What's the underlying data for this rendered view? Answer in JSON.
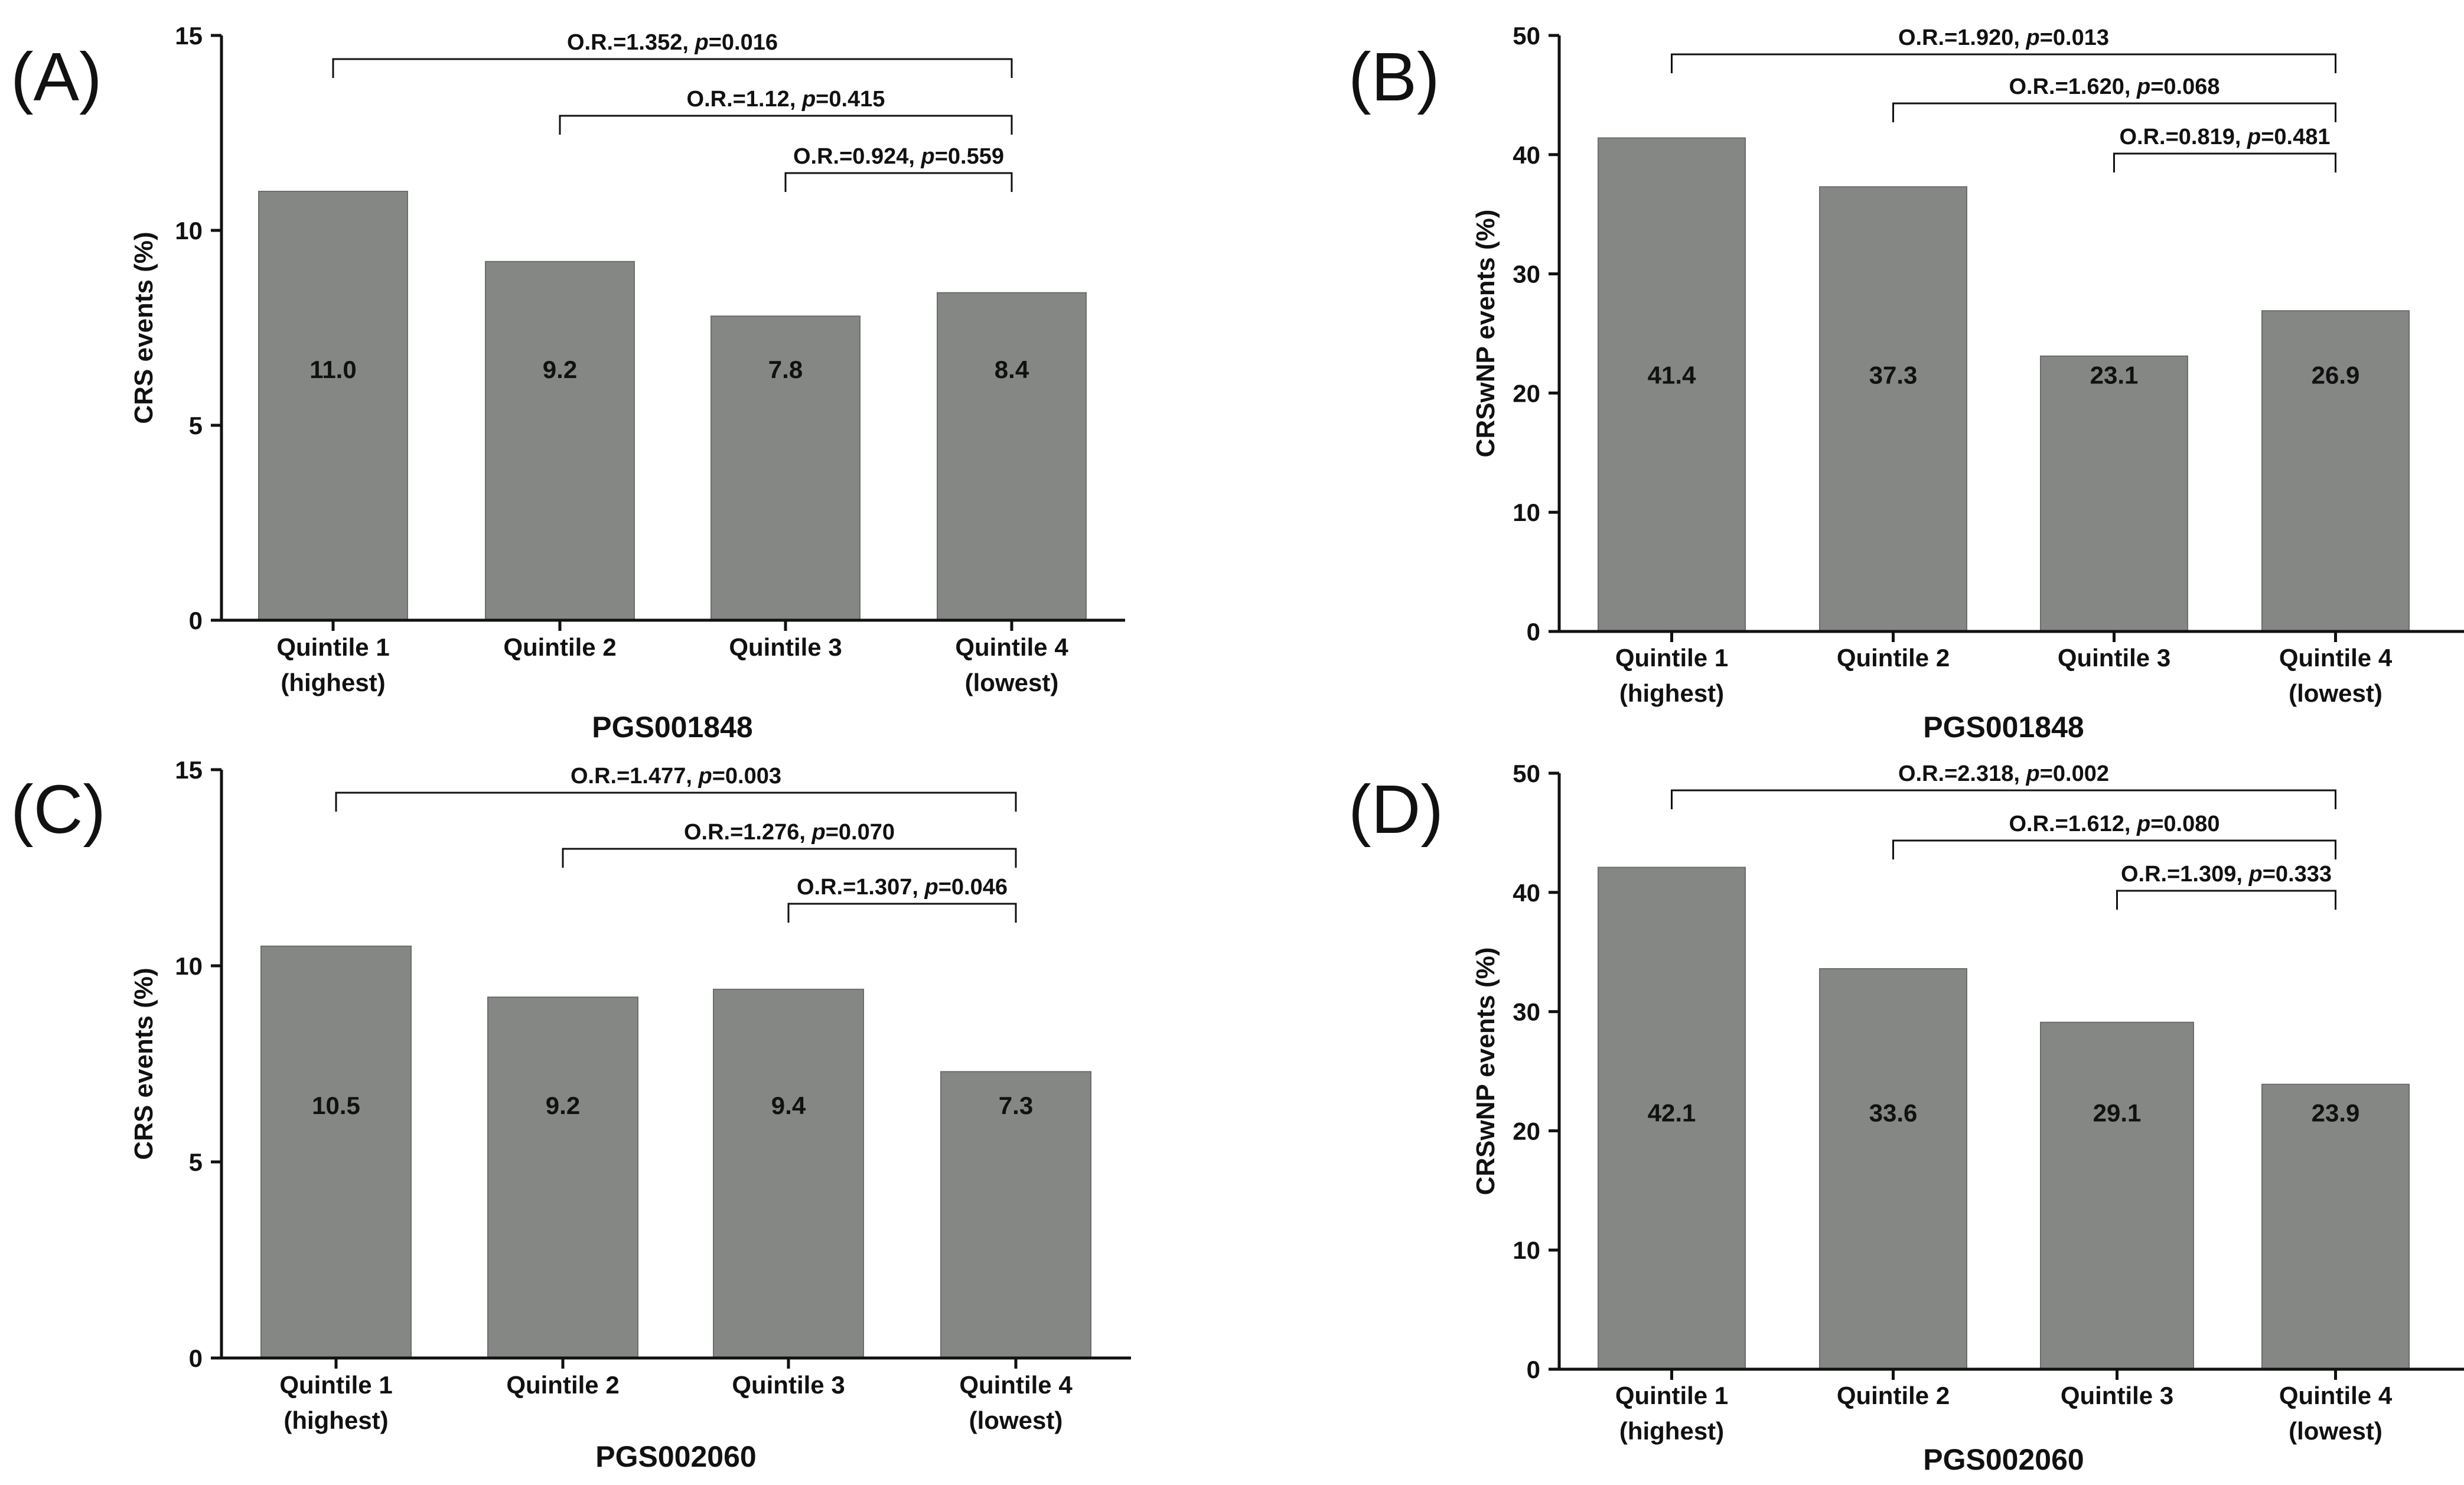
{
  "chart_data": [
    {
      "panel": "(A)",
      "type": "bar",
      "ylabel": "CRS events (%)",
      "xlabel": "PGS001848",
      "ylim": [
        0,
        15
      ],
      "yticks": [
        "0",
        "5",
        "10",
        "15"
      ],
      "categories": [
        [
          "Quintile 1",
          "(highest)"
        ],
        [
          "Quintile 2"
        ],
        [
          "Quintile 3"
        ],
        [
          "Quintile 4",
          "(lowest)"
        ]
      ],
      "values": [
        11.0,
        9.2,
        7.8,
        8.4
      ],
      "value_labels": [
        "11.0",
        "9.2",
        "7.8",
        "8.4"
      ],
      "bar_color": "#848784",
      "comparisons": [
        {
          "from": 0,
          "to": 3,
          "or": "O.R.=1.352, ",
          "p": "p",
          "pval": "=0.016"
        },
        {
          "from": 1,
          "to": 3,
          "or": "O.R.=1.12, ",
          "p": "p",
          "pval": "=0.415"
        },
        {
          "from": 2,
          "to": 3,
          "or": "O.R.=0.924, ",
          "p": "p",
          "pval": "=0.559"
        }
      ]
    },
    {
      "panel": "(B)",
      "type": "bar",
      "ylabel": "CRSwNP events (%)",
      "xlabel": "PGS001848",
      "ylim": [
        0,
        50
      ],
      "yticks": [
        "0",
        "10",
        "20",
        "30",
        "40",
        "50"
      ],
      "categories": [
        [
          "Quintile 1",
          "(highest)"
        ],
        [
          "Quintile 2"
        ],
        [
          "Quintile 3"
        ],
        [
          "Quintile 4",
          "(lowest)"
        ]
      ],
      "values": [
        41.4,
        37.3,
        23.1,
        26.9
      ],
      "value_labels": [
        "41.4",
        "37.3",
        "23.1",
        "26.9"
      ],
      "bar_color": "#848784",
      "comparisons": [
        {
          "from": 0,
          "to": 3,
          "or": "O.R.=1.920, ",
          "p": "p",
          "pval": "=0.013"
        },
        {
          "from": 1,
          "to": 3,
          "or": "O.R.=1.620, ",
          "p": "p",
          "pval": "=0.068"
        },
        {
          "from": 2,
          "to": 3,
          "or": "O.R.=0.819, ",
          "p": "p",
          "pval": "=0.481"
        }
      ]
    },
    {
      "panel": "(C)",
      "type": "bar",
      "ylabel": "CRS events (%)",
      "xlabel": "PGS002060",
      "ylim": [
        0,
        15
      ],
      "yticks": [
        "0",
        "5",
        "10",
        "15"
      ],
      "categories": [
        [
          "Quintile 1",
          "(highest)"
        ],
        [
          "Quintile 2"
        ],
        [
          "Quintile 3"
        ],
        [
          "Quintile 4",
          "(lowest)"
        ]
      ],
      "values": [
        10.5,
        9.2,
        9.4,
        7.3
      ],
      "value_labels": [
        "10.5",
        "9.2",
        "9.4",
        "7.3"
      ],
      "bar_color": "#848784",
      "comparisons": [
        {
          "from": 0,
          "to": 3,
          "or": "O.R.=1.477, ",
          "p": "p",
          "pval": "=0.003"
        },
        {
          "from": 1,
          "to": 3,
          "or": "O.R.=1.276, ",
          "p": "p",
          "pval": "=0.070"
        },
        {
          "from": 2,
          "to": 3,
          "or": "O.R.=1.307, ",
          "p": "p",
          "pval": "=0.046"
        }
      ]
    },
    {
      "panel": "(D)",
      "type": "bar",
      "ylabel": "CRSwNP events (%)",
      "xlabel": "PGS002060",
      "ylim": [
        0,
        50
      ],
      "yticks": [
        "0",
        "10",
        "20",
        "30",
        "40",
        "50"
      ],
      "categories": [
        [
          "Quintile 1",
          "(highest)"
        ],
        [
          "Quintile 2"
        ],
        [
          "Quintile 3"
        ],
        [
          "Quintile 4",
          "(lowest)"
        ]
      ],
      "values": [
        42.1,
        33.6,
        29.1,
        23.9
      ],
      "value_labels": [
        "42.1",
        "33.6",
        "29.1",
        "23.9"
      ],
      "bar_color": "#848784",
      "comparisons": [
        {
          "from": 0,
          "to": 3,
          "or": "O.R.=2.318, ",
          "p": "p",
          "pval": "=0.002"
        },
        {
          "from": 1,
          "to": 3,
          "or": "O.R.=1.612, ",
          "p": "p",
          "pval": "=0.080"
        },
        {
          "from": 2,
          "to": 3,
          "or": "O.R.=1.309, ",
          "p": "p",
          "pval": "=0.333"
        }
      ]
    }
  ]
}
